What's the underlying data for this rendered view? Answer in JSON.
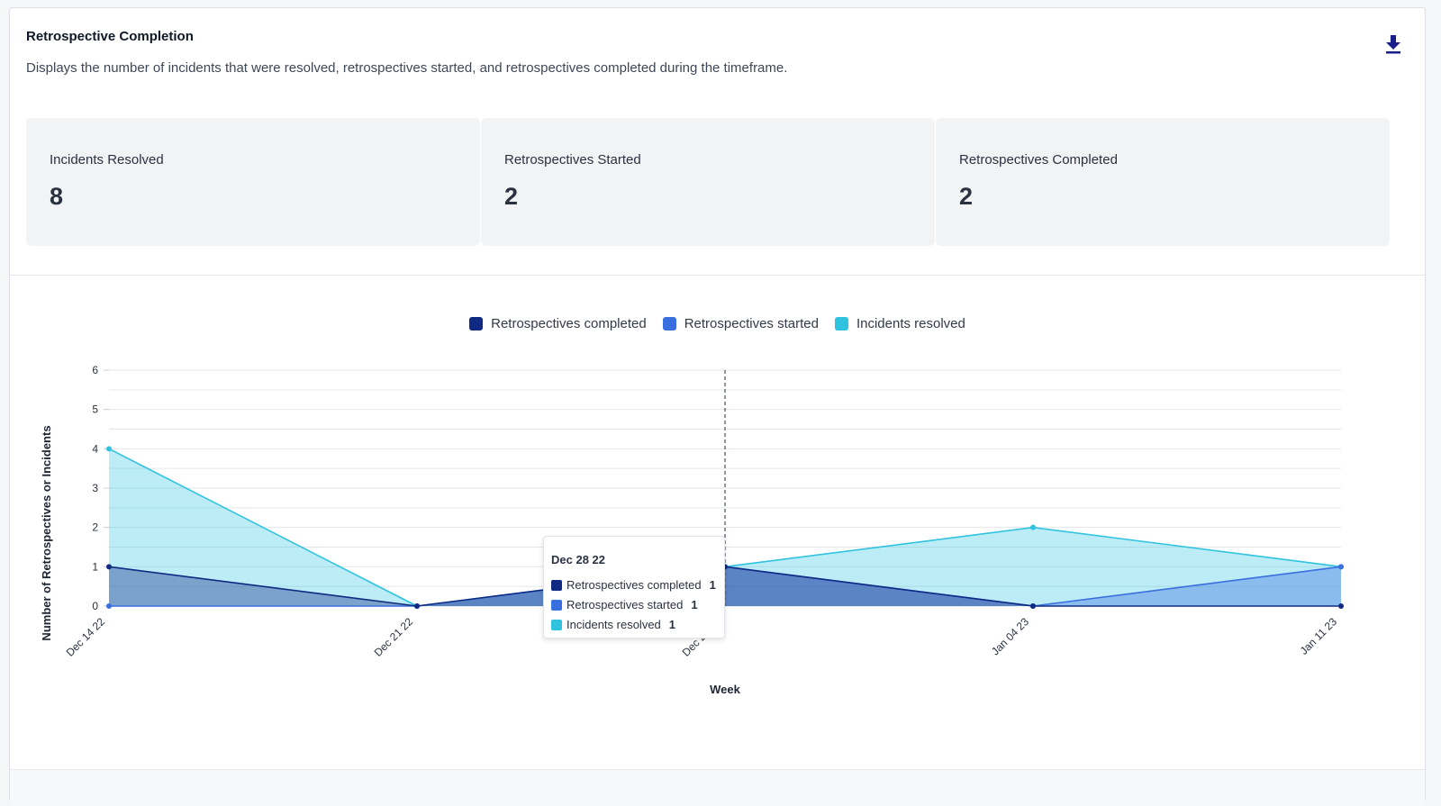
{
  "widget": {
    "title": "Retrospective Completion",
    "description": "Displays the number of incidents that were resolved, retrospectives started, and retrospectives completed during the timeframe.",
    "download_icon": "download-icon"
  },
  "stats": [
    {
      "label": "Incidents Resolved",
      "value": "8"
    },
    {
      "label": "Retrospectives Started",
      "value": "2"
    },
    {
      "label": "Retrospectives Completed",
      "value": "2"
    }
  ],
  "colors": {
    "completed": "#102a83",
    "started": "#3a6fe0",
    "resolved": "#2fc3e0"
  },
  "tooltip": {
    "title": "Dec 28 22",
    "rows": [
      {
        "label": "Retrospectives completed",
        "value": "1"
      },
      {
        "label": "Retrospectives started",
        "value": "1"
      },
      {
        "label": "Incidents resolved",
        "value": "1"
      }
    ]
  },
  "chart_data": {
    "type": "area",
    "categories": [
      "Dec 14 22",
      "Dec 21 22",
      "Dec 28 22",
      "Jan 04 23",
      "Jan 11 23"
    ],
    "series": [
      {
        "name": "Retrospectives completed",
        "values": [
          1,
          0,
          1,
          0,
          0
        ]
      },
      {
        "name": "Retrospectives started",
        "values": [
          0,
          0,
          1,
          0,
          1
        ]
      },
      {
        "name": "Incidents resolved",
        "values": [
          4,
          0,
          1,
          2,
          1
        ]
      }
    ],
    "xlabel": "Week",
    "ylabel": "Number of Retrospectives or Incidents",
    "ylim": [
      0,
      6
    ],
    "yticks": [
      0,
      1,
      2,
      3,
      4,
      5,
      6
    ],
    "grid": true,
    "legend_position": "top-center",
    "hovered_category": "Dec 28 22"
  }
}
